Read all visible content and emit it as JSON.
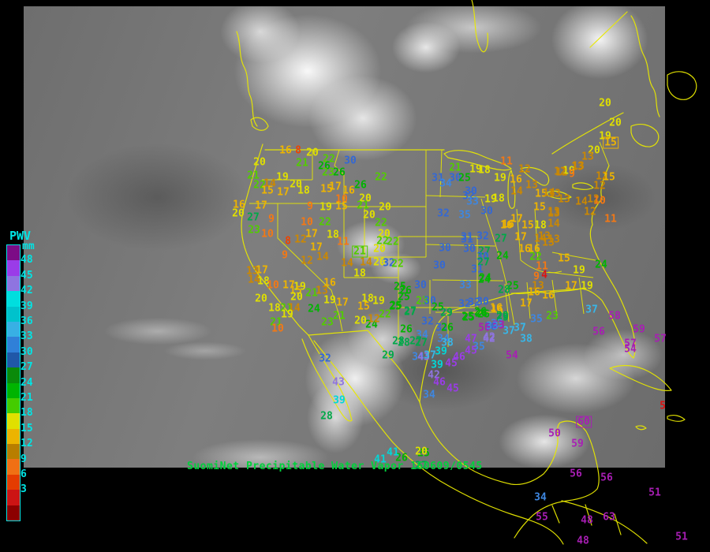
{
  "caption": {
    "text": "SuomiNet Precipitable Water Vapor 160609/0545",
    "color": "#00d23c"
  },
  "legend": {
    "title": "PWV",
    "unit": "mm",
    "label_color": "#00e5e5",
    "border_color": "#00e5e5",
    "labels": [
      "48",
      "45",
      "42",
      "39",
      "36",
      "33",
      "30",
      "27",
      "24",
      "21",
      "18",
      "15",
      "12",
      "9",
      "6",
      "3"
    ],
    "swatches": [
      "#7c0c86",
      "#9a3ce8",
      "#8f74e0",
      "#00dede",
      "#00c2cc",
      "#38b0e4",
      "#3080d8",
      "#2058a8",
      "#0a8a0a",
      "#00b400",
      "#44cc00",
      "#e0e000",
      "#ecb400",
      "#b87e00",
      "#f07014",
      "#e43c00",
      "#cc1414",
      "#8c0000"
    ]
  },
  "map": {
    "outline_color": "#e8e800"
  },
  "value_colors": [
    {
      "min": 48,
      "color": "#a81eb4"
    },
    {
      "min": 45,
      "color": "#9a3ce8"
    },
    {
      "min": 42,
      "color": "#8f74e0"
    },
    {
      "min": 39,
      "color": "#00d8d8"
    },
    {
      "min": 36,
      "color": "#38b6e8"
    },
    {
      "min": 33,
      "color": "#3e87e0"
    },
    {
      "min": 30,
      "color": "#3468d4"
    },
    {
      "min": 27,
      "color": "#00a848"
    },
    {
      "min": 24,
      "color": "#00b400"
    },
    {
      "min": 21,
      "color": "#52cc00"
    },
    {
      "min": 18,
      "color": "#e0e000"
    },
    {
      "min": 15,
      "color": "#eeb400"
    },
    {
      "min": 12,
      "color": "#cc8800"
    },
    {
      "min": 9,
      "color": "#f47814"
    },
    {
      "min": 6,
      "color": "#ee4400"
    },
    {
      "min": 3,
      "color": "#dd1111"
    },
    {
      "min": 0,
      "color": "#990000"
    }
  ],
  "stations": [
    [
      16,
      362,
      191
    ],
    [
      8,
      378,
      191
    ],
    [
      20,
      396,
      194
    ],
    [
      22,
      417,
      202
    ],
    [
      30,
      444,
      204
    ],
    [
      21,
      383,
      207
    ],
    [
      26,
      411,
      211
    ],
    [
      20,
      329,
      206
    ],
    [
      23,
      416,
      219
    ],
    [
      26,
      430,
      219
    ],
    [
      21,
      321,
      223
    ],
    [
      22,
      483,
      225
    ],
    [
      19,
      358,
      225
    ],
    [
      14,
      342,
      233
    ],
    [
      22,
      329,
      235
    ],
    [
      20,
      375,
      234
    ],
    [
      26,
      457,
      235
    ],
    [
      15,
      339,
      242
    ],
    [
      17,
      359,
      244
    ],
    [
      18,
      385,
      242
    ],
    [
      15,
      414,
      240
    ],
    [
      17,
      425,
      237
    ],
    [
      16,
      442,
      242
    ],
    [
      10,
      433,
      253
    ],
    [
      20,
      463,
      252
    ],
    [
      16,
      303,
      260
    ],
    [
      17,
      331,
      261
    ],
    [
      9,
      393,
      262
    ],
    [
      19,
      413,
      263
    ],
    [
      15,
      433,
      262
    ],
    [
      21,
      460,
      261
    ],
    [
      20,
      488,
      263
    ],
    [
      27,
      321,
      276
    ],
    [
      9,
      344,
      278
    ],
    [
      20,
      302,
      271
    ],
    [
      23,
      322,
      292
    ],
    [
      10,
      389,
      282
    ],
    [
      22,
      412,
      282
    ],
    [
      20,
      468,
      273
    ],
    [
      22,
      483,
      283
    ],
    [
      10,
      339,
      297
    ],
    [
      8,
      365,
      306
    ],
    [
      12,
      381,
      304
    ],
    [
      17,
      395,
      297
    ],
    [
      18,
      422,
      298
    ],
    [
      11,
      435,
      307
    ],
    [
      9,
      361,
      324
    ],
    [
      17,
      401,
      314
    ],
    [
      12,
      389,
      331
    ],
    [
      14,
      409,
      326
    ],
    [
      21,
      456,
      319,
      1
    ],
    [
      14,
      440,
      334
    ],
    [
      14,
      464,
      333
    ],
    [
      18,
      456,
      347
    ],
    [
      13,
      320,
      344
    ],
    [
      17,
      332,
      343
    ],
    [
      14,
      322,
      355
    ],
    [
      18,
      334,
      357
    ],
    [
      10,
      346,
      362
    ],
    [
      17,
      366,
      362
    ],
    [
      19,
      380,
      364
    ],
    [
      16,
      418,
      359
    ],
    [
      15,
      375,
      369
    ],
    [
      20,
      376,
      377
    ],
    [
      21,
      395,
      372
    ],
    [
      13,
      408,
      369
    ],
    [
      20,
      331,
      379
    ],
    [
      19,
      418,
      381
    ],
    [
      18,
      466,
      379
    ],
    [
      15,
      461,
      389
    ],
    [
      18,
      348,
      391
    ],
    [
      21,
      363,
      391
    ],
    [
      14,
      373,
      391
    ],
    [
      24,
      398,
      392
    ],
    [
      19,
      364,
      399
    ],
    [
      21,
      430,
      401
    ],
    [
      23,
      415,
      409
    ],
    [
      21,
      350,
      409
    ],
    [
      20,
      457,
      407
    ],
    [
      24,
      471,
      412
    ],
    [
      10,
      352,
      417
    ],
    [
      20,
      487,
      297
    ],
    [
      22,
      485,
      306
    ],
    [
      22,
      498,
      307
    ],
    [
      20,
      481,
      316
    ],
    [
      20,
      481,
      333
    ],
    [
      32,
      493,
      334
    ],
    [
      22,
      504,
      335
    ],
    [
      30,
      564,
      315
    ],
    [
      31,
      592,
      304
    ],
    [
      30,
      595,
      316
    ],
    [
      27,
      614,
      319
    ],
    [
      30,
      612,
      326
    ],
    [
      27,
      613,
      333
    ],
    [
      31,
      605,
      342
    ],
    [
      24,
      615,
      353
    ],
    [
      33,
      590,
      362
    ],
    [
      30,
      557,
      337
    ],
    [
      25,
      507,
      364
    ],
    [
      30,
      533,
      362
    ],
    [
      26,
      514,
      369
    ],
    [
      25,
      512,
      377
    ],
    [
      23,
      535,
      382
    ],
    [
      30,
      545,
      382
    ],
    [
      25,
      555,
      390
    ],
    [
      29,
      566,
      397
    ],
    [
      32,
      601,
      384
    ],
    [
      26,
      613,
      399
    ],
    [
      25,
      593,
      402
    ],
    [
      27,
      520,
      395
    ],
    [
      25,
      501,
      389
    ],
    [
      22,
      488,
      399
    ],
    [
      12,
      474,
      405
    ],
    [
      19,
      480,
      382
    ],
    [
      17,
      434,
      384
    ],
    [
      21,
      577,
      213
    ],
    [
      19,
      603,
      215
    ],
    [
      18,
      614,
      216
    ],
    [
      11,
      642,
      205
    ],
    [
      12,
      665,
      215
    ],
    [
      13,
      732,
      212
    ],
    [
      12,
      712,
      219
    ],
    [
      19,
      721,
      217
    ],
    [
      31,
      555,
      226
    ],
    [
      30,
      577,
      226
    ],
    [
      25,
      589,
      226
    ],
    [
      34,
      565,
      233
    ],
    [
      19,
      634,
      226
    ],
    [
      16,
      654,
      228
    ],
    [
      30,
      597,
      243
    ],
    [
      32,
      594,
      249
    ],
    [
      33,
      599,
      256
    ],
    [
      19,
      622,
      253
    ],
    [
      18,
      632,
      252
    ],
    [
      14,
      655,
      243
    ],
    [
      13,
      674,
      235
    ],
    [
      15,
      686,
      246
    ],
    [
      30,
      617,
      268
    ],
    [
      32,
      562,
      271
    ],
    [
      35,
      589,
      273
    ],
    [
      17,
      655,
      278
    ],
    [
      16,
      644,
      285
    ],
    [
      15,
      684,
      263
    ],
    [
      14,
      696,
      245
    ],
    [
      13,
      702,
      271
    ],
    [
      31,
      592,
      301
    ],
    [
      32,
      612,
      300
    ],
    [
      27,
      635,
      303
    ],
    [
      13,
      690,
      300
    ],
    [
      13,
      733,
      211
    ],
    [
      12,
      710,
      218
    ],
    [
      9,
      725,
      221
    ],
    [
      12,
      763,
      224
    ],
    [
      15,
      772,
      225
    ],
    [
      12,
      760,
      236
    ],
    [
      13,
      703,
      246
    ],
    [
      13,
      715,
      253
    ],
    [
      14,
      737,
      256
    ],
    [
      12,
      752,
      253
    ],
    [
      10,
      760,
      255
    ],
    [
      13,
      702,
      269
    ],
    [
      12,
      748,
      269
    ],
    [
      14,
      702,
      284
    ],
    [
      13,
      702,
      304
    ],
    [
      11,
      774,
      278
    ],
    [
      20,
      767,
      131
    ],
    [
      20,
      780,
      156
    ],
    [
      19,
      767,
      173
    ],
    [
      15,
      774,
      181,
      1
    ],
    [
      20,
      753,
      191
    ],
    [
      13,
      745,
      199
    ],
    [
      16,
      642,
      286
    ],
    [
      15,
      669,
      286
    ],
    [
      18,
      685,
      286
    ],
    [
      17,
      660,
      301
    ],
    [
      14,
      685,
      303
    ],
    [
      13,
      695,
      308
    ],
    [
      16,
      665,
      316
    ],
    [
      16,
      677,
      316
    ],
    [
      24,
      637,
      325
    ],
    [
      22,
      679,
      326
    ],
    [
      11,
      687,
      338
    ],
    [
      15,
      715,
      328
    ],
    [
      19,
      734,
      343
    ],
    [
      9,
      680,
      351
    ],
    [
      4,
      690,
      349
    ],
    [
      24,
      762,
      336
    ],
    [
      24,
      614,
      355
    ],
    [
      25,
      650,
      363
    ],
    [
      28,
      639,
      368
    ],
    [
      13,
      682,
      363
    ],
    [
      16,
      677,
      371
    ],
    [
      16,
      695,
      375
    ],
    [
      17,
      724,
      363
    ],
    [
      19,
      744,
      363
    ],
    [
      17,
      667,
      385
    ],
    [
      30,
      612,
      383
    ],
    [
      16,
      630,
      393
    ],
    [
      26,
      610,
      398
    ],
    [
      29,
      637,
      403
    ],
    [
      33,
      630,
      411
    ],
    [
      30,
      622,
      415
    ],
    [
      37,
      645,
      420
    ],
    [
      37,
      659,
      416
    ],
    [
      23,
      700,
      401
    ],
    [
      35,
      680,
      405
    ],
    [
      37,
      750,
      393
    ],
    [
      58,
      779,
      401
    ],
    [
      56,
      759,
      421
    ],
    [
      42,
      620,
      428
    ],
    [
      35,
      607,
      440
    ],
    [
      38,
      667,
      430
    ],
    [
      54,
      649,
      451
    ],
    [
      59,
      810,
      418
    ],
    [
      57,
      837,
      430
    ],
    [
      57,
      799,
      436
    ],
    [
      54,
      799,
      443
    ],
    [
      5,
      840,
      515
    ],
    [
      25,
      502,
      388
    ],
    [
      27,
      520,
      396
    ],
    [
      32,
      542,
      408
    ],
    [
      26,
      515,
      418
    ],
    [
      34,
      535,
      425
    ],
    [
      31,
      560,
      416
    ],
    [
      26,
      567,
      416
    ],
    [
      28,
      505,
      433
    ],
    [
      27,
      527,
      433
    ],
    [
      34,
      562,
      430
    ],
    [
      38,
      567,
      435
    ],
    [
      39,
      559,
      446
    ],
    [
      34,
      530,
      453
    ],
    [
      43,
      537,
      453
    ],
    [
      37,
      545,
      451
    ],
    [
      39,
      554,
      463
    ],
    [
      45,
      572,
      461
    ],
    [
      46,
      582,
      453
    ],
    [
      45,
      597,
      445
    ],
    [
      47,
      597,
      430
    ],
    [
      42,
      620,
      430
    ],
    [
      42,
      550,
      476
    ],
    [
      46,
      557,
      485
    ],
    [
      45,
      574,
      493
    ],
    [
      34,
      544,
      501
    ],
    [
      53,
      632,
      413
    ],
    [
      25,
      594,
      403
    ],
    [
      26,
      609,
      396
    ],
    [
      16,
      629,
      391
    ],
    [
      29,
      637,
      401
    ],
    [
      32,
      589,
      386
    ],
    [
      50,
      614,
      416
    ],
    [
      33,
      624,
      414
    ],
    [
      32,
      412,
      455
    ],
    [
      43,
      429,
      485
    ],
    [
      39,
      430,
      508
    ],
    [
      28,
      414,
      528
    ],
    [
      29,
      492,
      451
    ],
    [
      28,
      512,
      435
    ],
    [
      27,
      534,
      435
    ],
    [
      41,
      482,
      583
    ],
    [
      26,
      509,
      581
    ],
    [
      25,
      537,
      575
    ],
    [
      27,
      534,
      591
    ],
    [
      41,
      498,
      574
    ],
    [
      20,
      534,
      573
    ],
    [
      50,
      703,
      550
    ],
    [
      60,
      740,
      535,
      1
    ],
    [
      59,
      732,
      563
    ],
    [
      56,
      730,
      601
    ],
    [
      56,
      769,
      606
    ],
    [
      51,
      830,
      625
    ],
    [
      34,
      685,
      631
    ],
    [
      55,
      687,
      656
    ],
    [
      48,
      744,
      660
    ],
    [
      63,
      772,
      656
    ],
    [
      48,
      739,
      686
    ],
    [
      51,
      864,
      681
    ]
  ]
}
